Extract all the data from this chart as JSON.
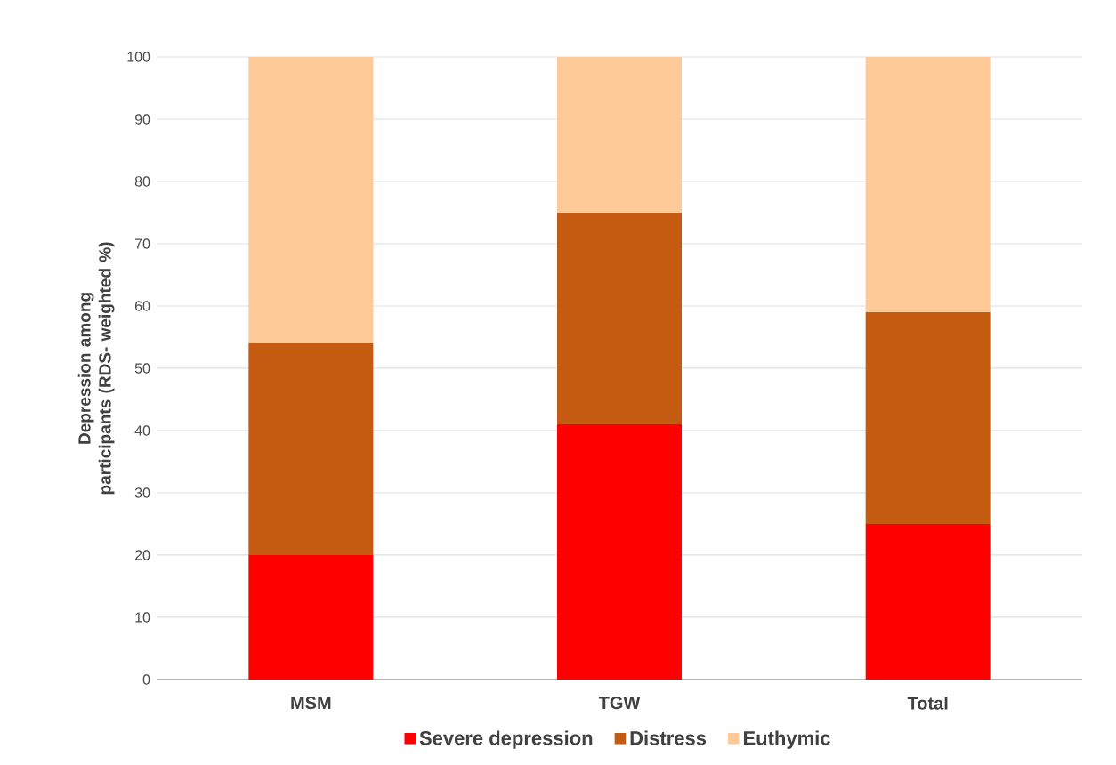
{
  "chart_data": {
    "type": "bar",
    "stacked": true,
    "ylabel": "Depression among participants (RDS- weighted %)",
    "categories": [
      "MSM",
      "TGW",
      "Total"
    ],
    "series": [
      {
        "name": "Severe depression",
        "color": "#ff0000",
        "values": [
          20,
          41,
          25
        ]
      },
      {
        "name": "Distress",
        "color": "#c55a11",
        "values": [
          34,
          34,
          34
        ]
      },
      {
        "name": "Euthymic",
        "color": "#fdca98",
        "values": [
          46,
          25,
          41
        ]
      }
    ],
    "ylim": [
      0,
      100
    ],
    "yticks": [
      0,
      10,
      20,
      30,
      40,
      50,
      60,
      70,
      80,
      90,
      100
    ],
    "grid": "y",
    "legend": "bottom"
  }
}
